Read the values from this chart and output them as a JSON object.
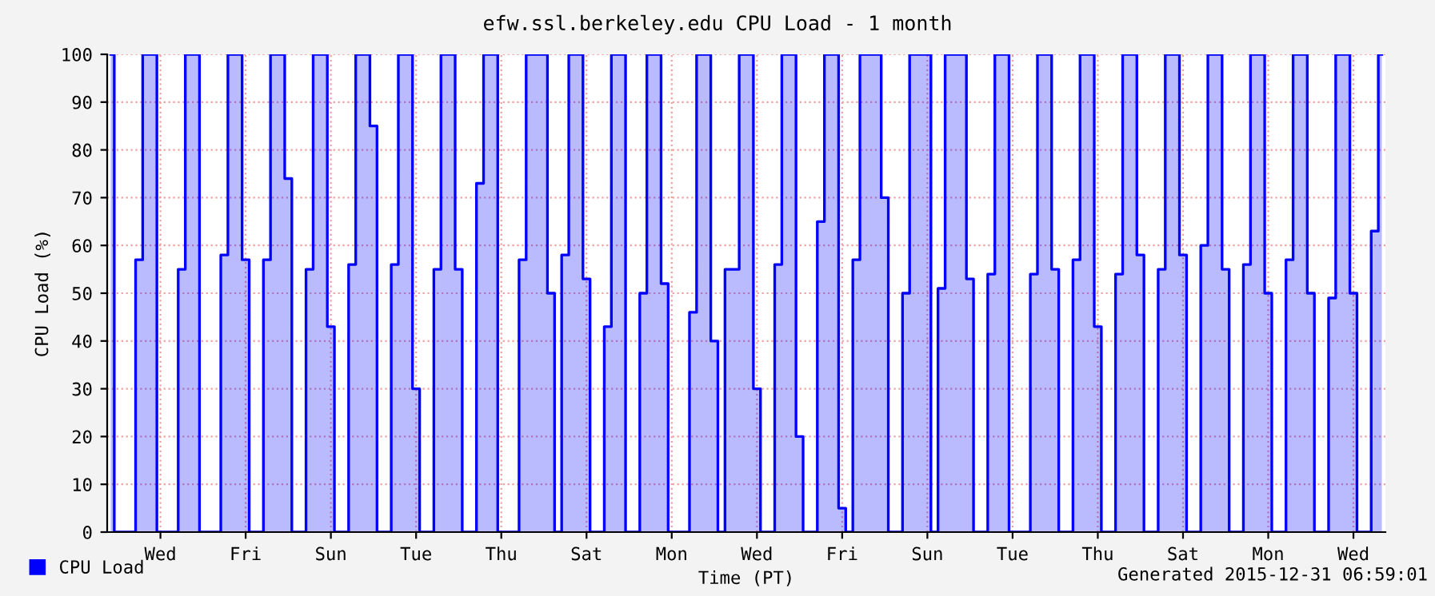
{
  "chart_data": {
    "type": "step",
    "title": "efw.ssl.berkeley.edu CPU Load - 1 month",
    "xlabel": "Time (PT)",
    "ylabel": "CPU Load (%)",
    "annotations": [
      "Generated 2015-12-31 06:59:01"
    ],
    "ylim": [
      0,
      100
    ],
    "yticks": [
      0,
      10,
      20,
      30,
      40,
      50,
      60,
      70,
      80,
      90,
      100
    ],
    "grid": true,
    "legend": "bottom left",
    "categories": [
      null,
      null,
      null,
      null,
      null,
      null,
      null,
      "Wed",
      null,
      null,
      null,
      null,
      null,
      null,
      null,
      null,
      null,
      null,
      null,
      "Fri",
      null,
      null,
      null,
      null,
      null,
      null,
      null,
      null,
      null,
      null,
      null,
      "Sun",
      null,
      null,
      null,
      null,
      null,
      null,
      null,
      null,
      null,
      null,
      null,
      "Tue",
      null,
      null,
      null,
      null,
      null,
      null,
      null,
      null,
      null,
      null,
      null,
      "Thu",
      null,
      null,
      null,
      null,
      null,
      null,
      null,
      null,
      null,
      null,
      null,
      "Sat",
      null,
      null,
      null,
      null,
      null,
      null,
      null,
      null,
      null,
      null,
      null,
      "Mon",
      null,
      null,
      null,
      null,
      null,
      null,
      null,
      null,
      null,
      null,
      null,
      "Wed",
      null,
      null,
      null,
      null,
      null,
      null,
      null,
      null,
      null,
      null,
      null,
      "Fri",
      null,
      null,
      null,
      null,
      null,
      null,
      null,
      null,
      null,
      null,
      null,
      "Sun",
      null,
      null,
      null,
      null,
      null,
      null,
      null,
      null,
      null,
      null,
      null,
      "Tue",
      null,
      null,
      null,
      null,
      null,
      null,
      null,
      null,
      null,
      null,
      null,
      "Thu",
      null,
      null,
      null,
      null,
      null,
      null,
      null,
      null,
      null,
      null,
      null,
      "Sat",
      null,
      null,
      null,
      null,
      null,
      null,
      null,
      null,
      null,
      null,
      null,
      "Mon",
      null,
      null,
      null,
      null,
      null,
      null,
      null,
      null,
      null,
      null,
      null,
      "Wed",
      null,
      null,
      null,
      null
    ],
    "series": [
      {
        "name": "CPU Load",
        "color": "#0000ff",
        "values": [
          100,
          0,
          0,
          0,
          57,
          100,
          100,
          0,
          0,
          0,
          55,
          100,
          100,
          0,
          0,
          0,
          58,
          100,
          100,
          57,
          0,
          0,
          57,
          100,
          100,
          74,
          0,
          0,
          55,
          100,
          100,
          43,
          0,
          0,
          56,
          100,
          100,
          85,
          0,
          0,
          56,
          100,
          100,
          30,
          0,
          0,
          55,
          100,
          100,
          55,
          0,
          0,
          73,
          100,
          100,
          0,
          0,
          0,
          57,
          100,
          100,
          100,
          50,
          0,
          58,
          100,
          100,
          53,
          0,
          0,
          43,
          100,
          100,
          0,
          0,
          50,
          100,
          100,
          52,
          0,
          0,
          0,
          46,
          100,
          100,
          40,
          0,
          55,
          55,
          100,
          100,
          30,
          0,
          0,
          56,
          100,
          100,
          20,
          0,
          0,
          65,
          100,
          100,
          5,
          0,
          57,
          100,
          100,
          100,
          70,
          0,
          0,
          50,
          100,
          100,
          100,
          0,
          51,
          100,
          100,
          100,
          53,
          0,
          0,
          54,
          100,
          100,
          0,
          0,
          0,
          54,
          100,
          100,
          55,
          0,
          0,
          57,
          100,
          100,
          43,
          0,
          0,
          54,
          100,
          100,
          58,
          0,
          0,
          55,
          100,
          100,
          58,
          0,
          0,
          60,
          100,
          100,
          55,
          0,
          0,
          56,
          100,
          100,
          50,
          0,
          0,
          57,
          100,
          100,
          50,
          0,
          0,
          49,
          100,
          100,
          50,
          0,
          0,
          63,
          100
        ]
      }
    ]
  }
}
